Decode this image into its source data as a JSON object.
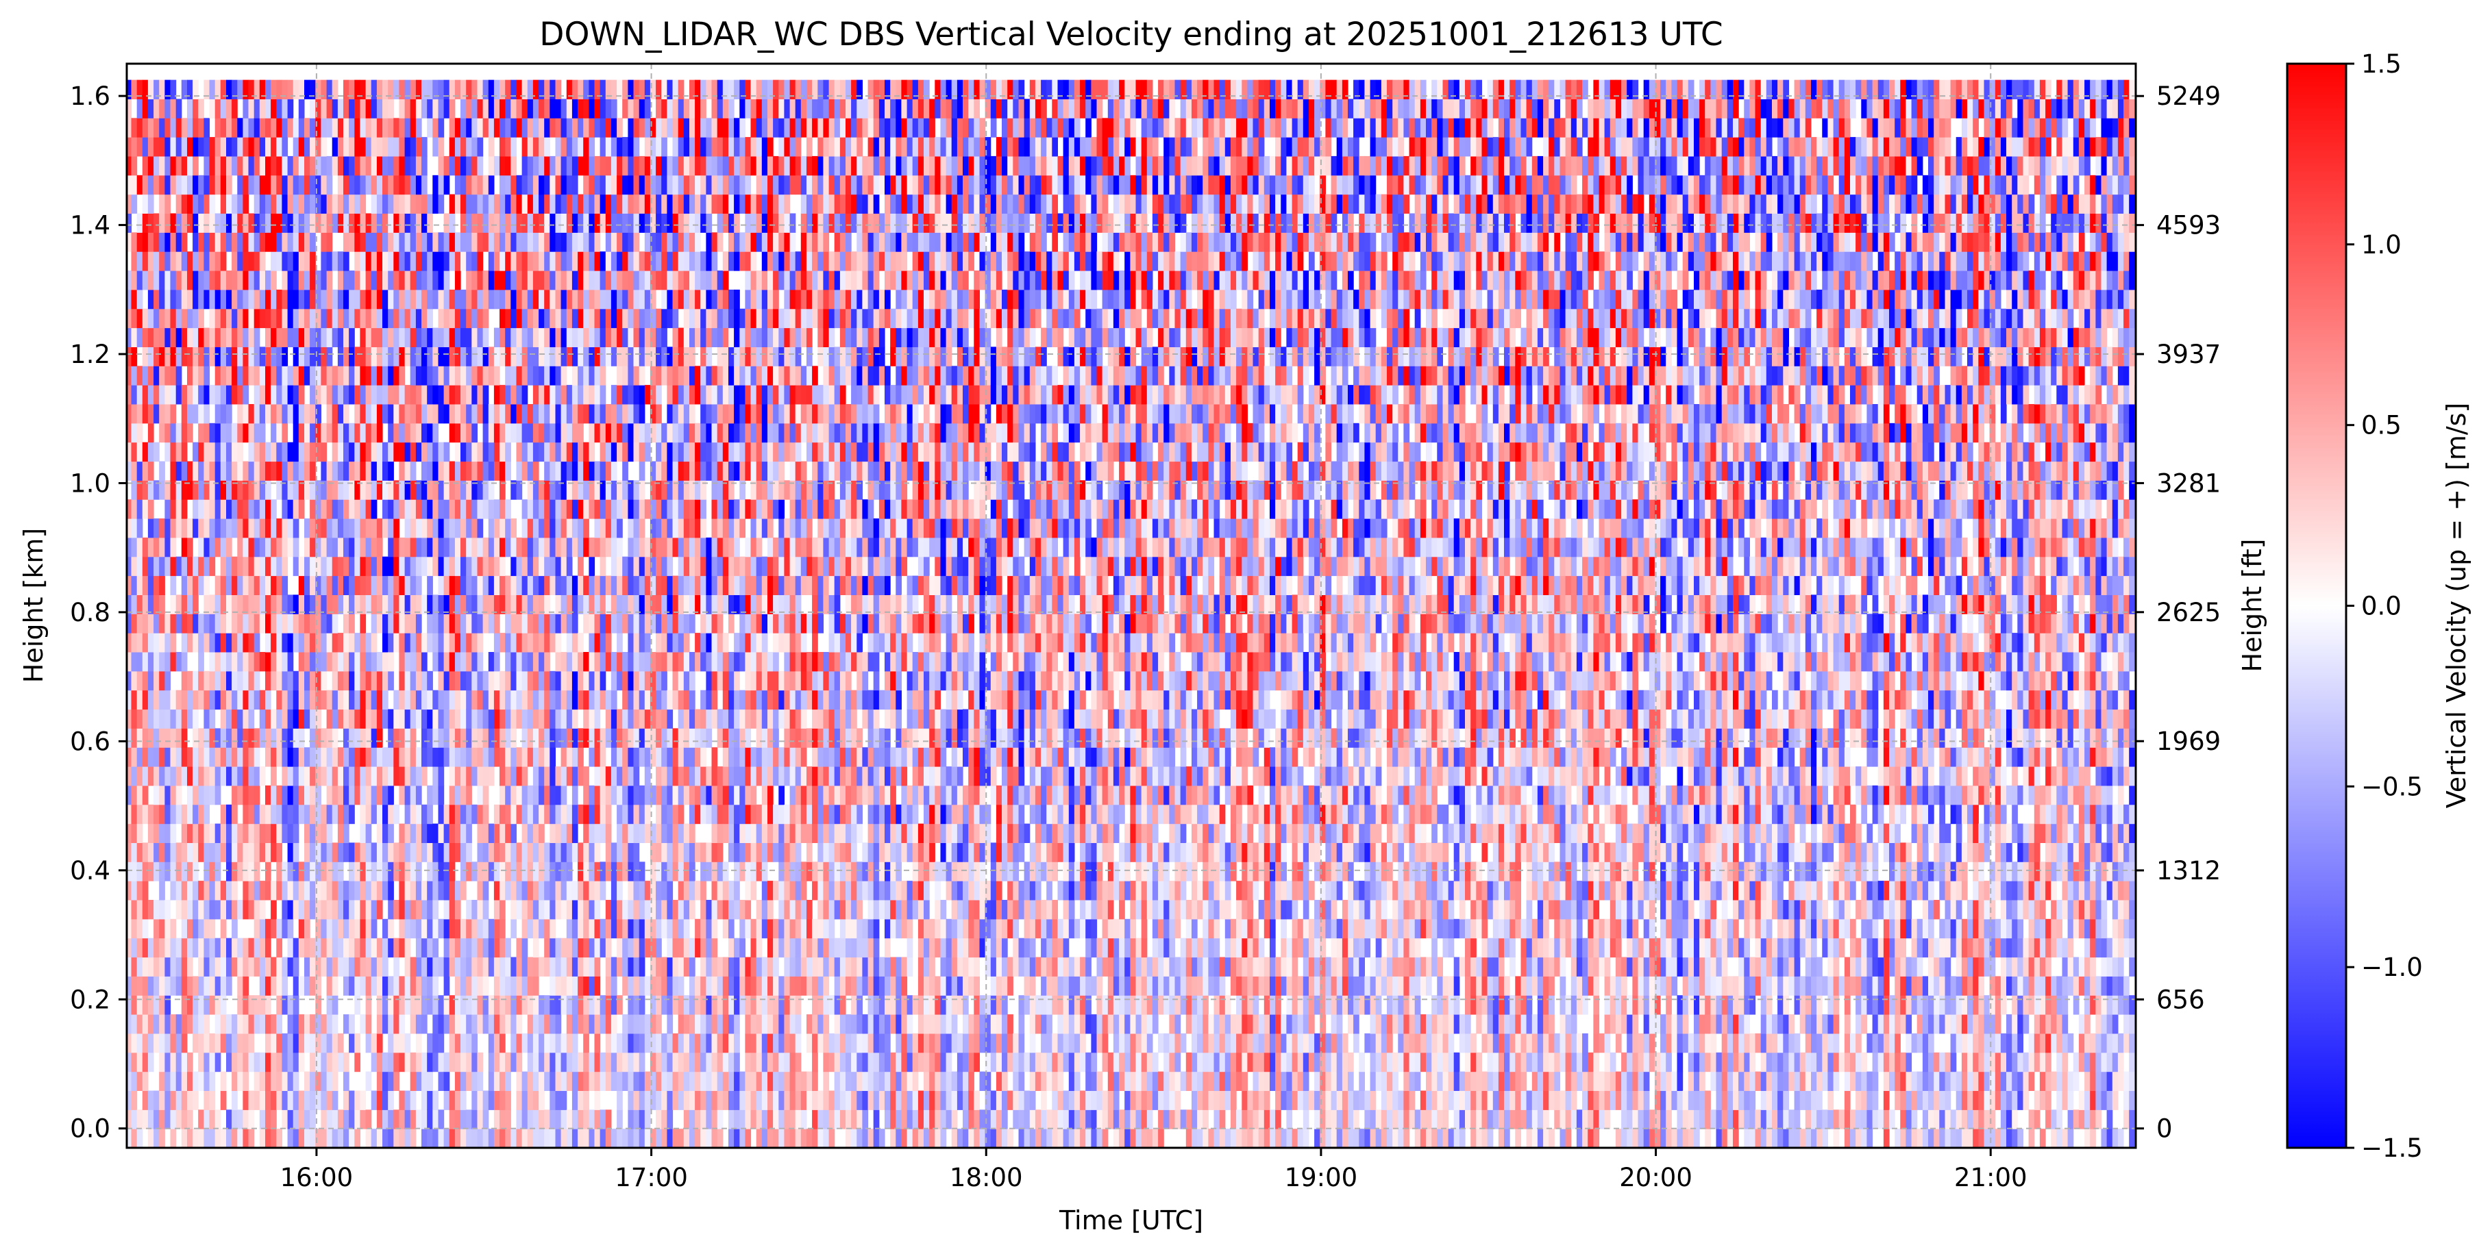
{
  "chart_data": {
    "type": "heatmap",
    "title": "DOWN_LIDAR_WC DBS Vertical Velocity ending at 20251001_212613 UTC",
    "xlabel": "Time [UTC]",
    "ylabel": "Height [km]",
    "y2label": "Height [ft]",
    "colorbar_label": "Vertical Velocity (up = +) [m/s]",
    "x_range": [
      "15:26",
      "21:26"
    ],
    "x_ticks": [
      "16:00",
      "17:00",
      "18:00",
      "19:00",
      "20:00",
      "21:00"
    ],
    "y_range_km": [
      -0.03,
      1.65
    ],
    "y_ticks_km": [
      "0.0",
      "0.2",
      "0.4",
      "0.6",
      "0.8",
      "1.0",
      "1.2",
      "1.4",
      "1.6"
    ],
    "y2_ticks_ft": [
      "0",
      "656",
      "1312",
      "1969",
      "2625",
      "3281",
      "3937",
      "4593",
      "5249"
    ],
    "colorbar_range": [
      -1.5,
      1.5
    ],
    "colorbar_ticks": [
      "−1.5",
      "−1.0",
      "−0.5",
      "0.0",
      "0.5",
      "1.0",
      "1.5"
    ],
    "colormap": [
      "#0000ff",
      "#ffffff",
      "#ff0000"
    ],
    "grid": true,
    "data_start_hour": 15.43,
    "data_end_hour": 21.43,
    "data_top_km": 1.625
  }
}
